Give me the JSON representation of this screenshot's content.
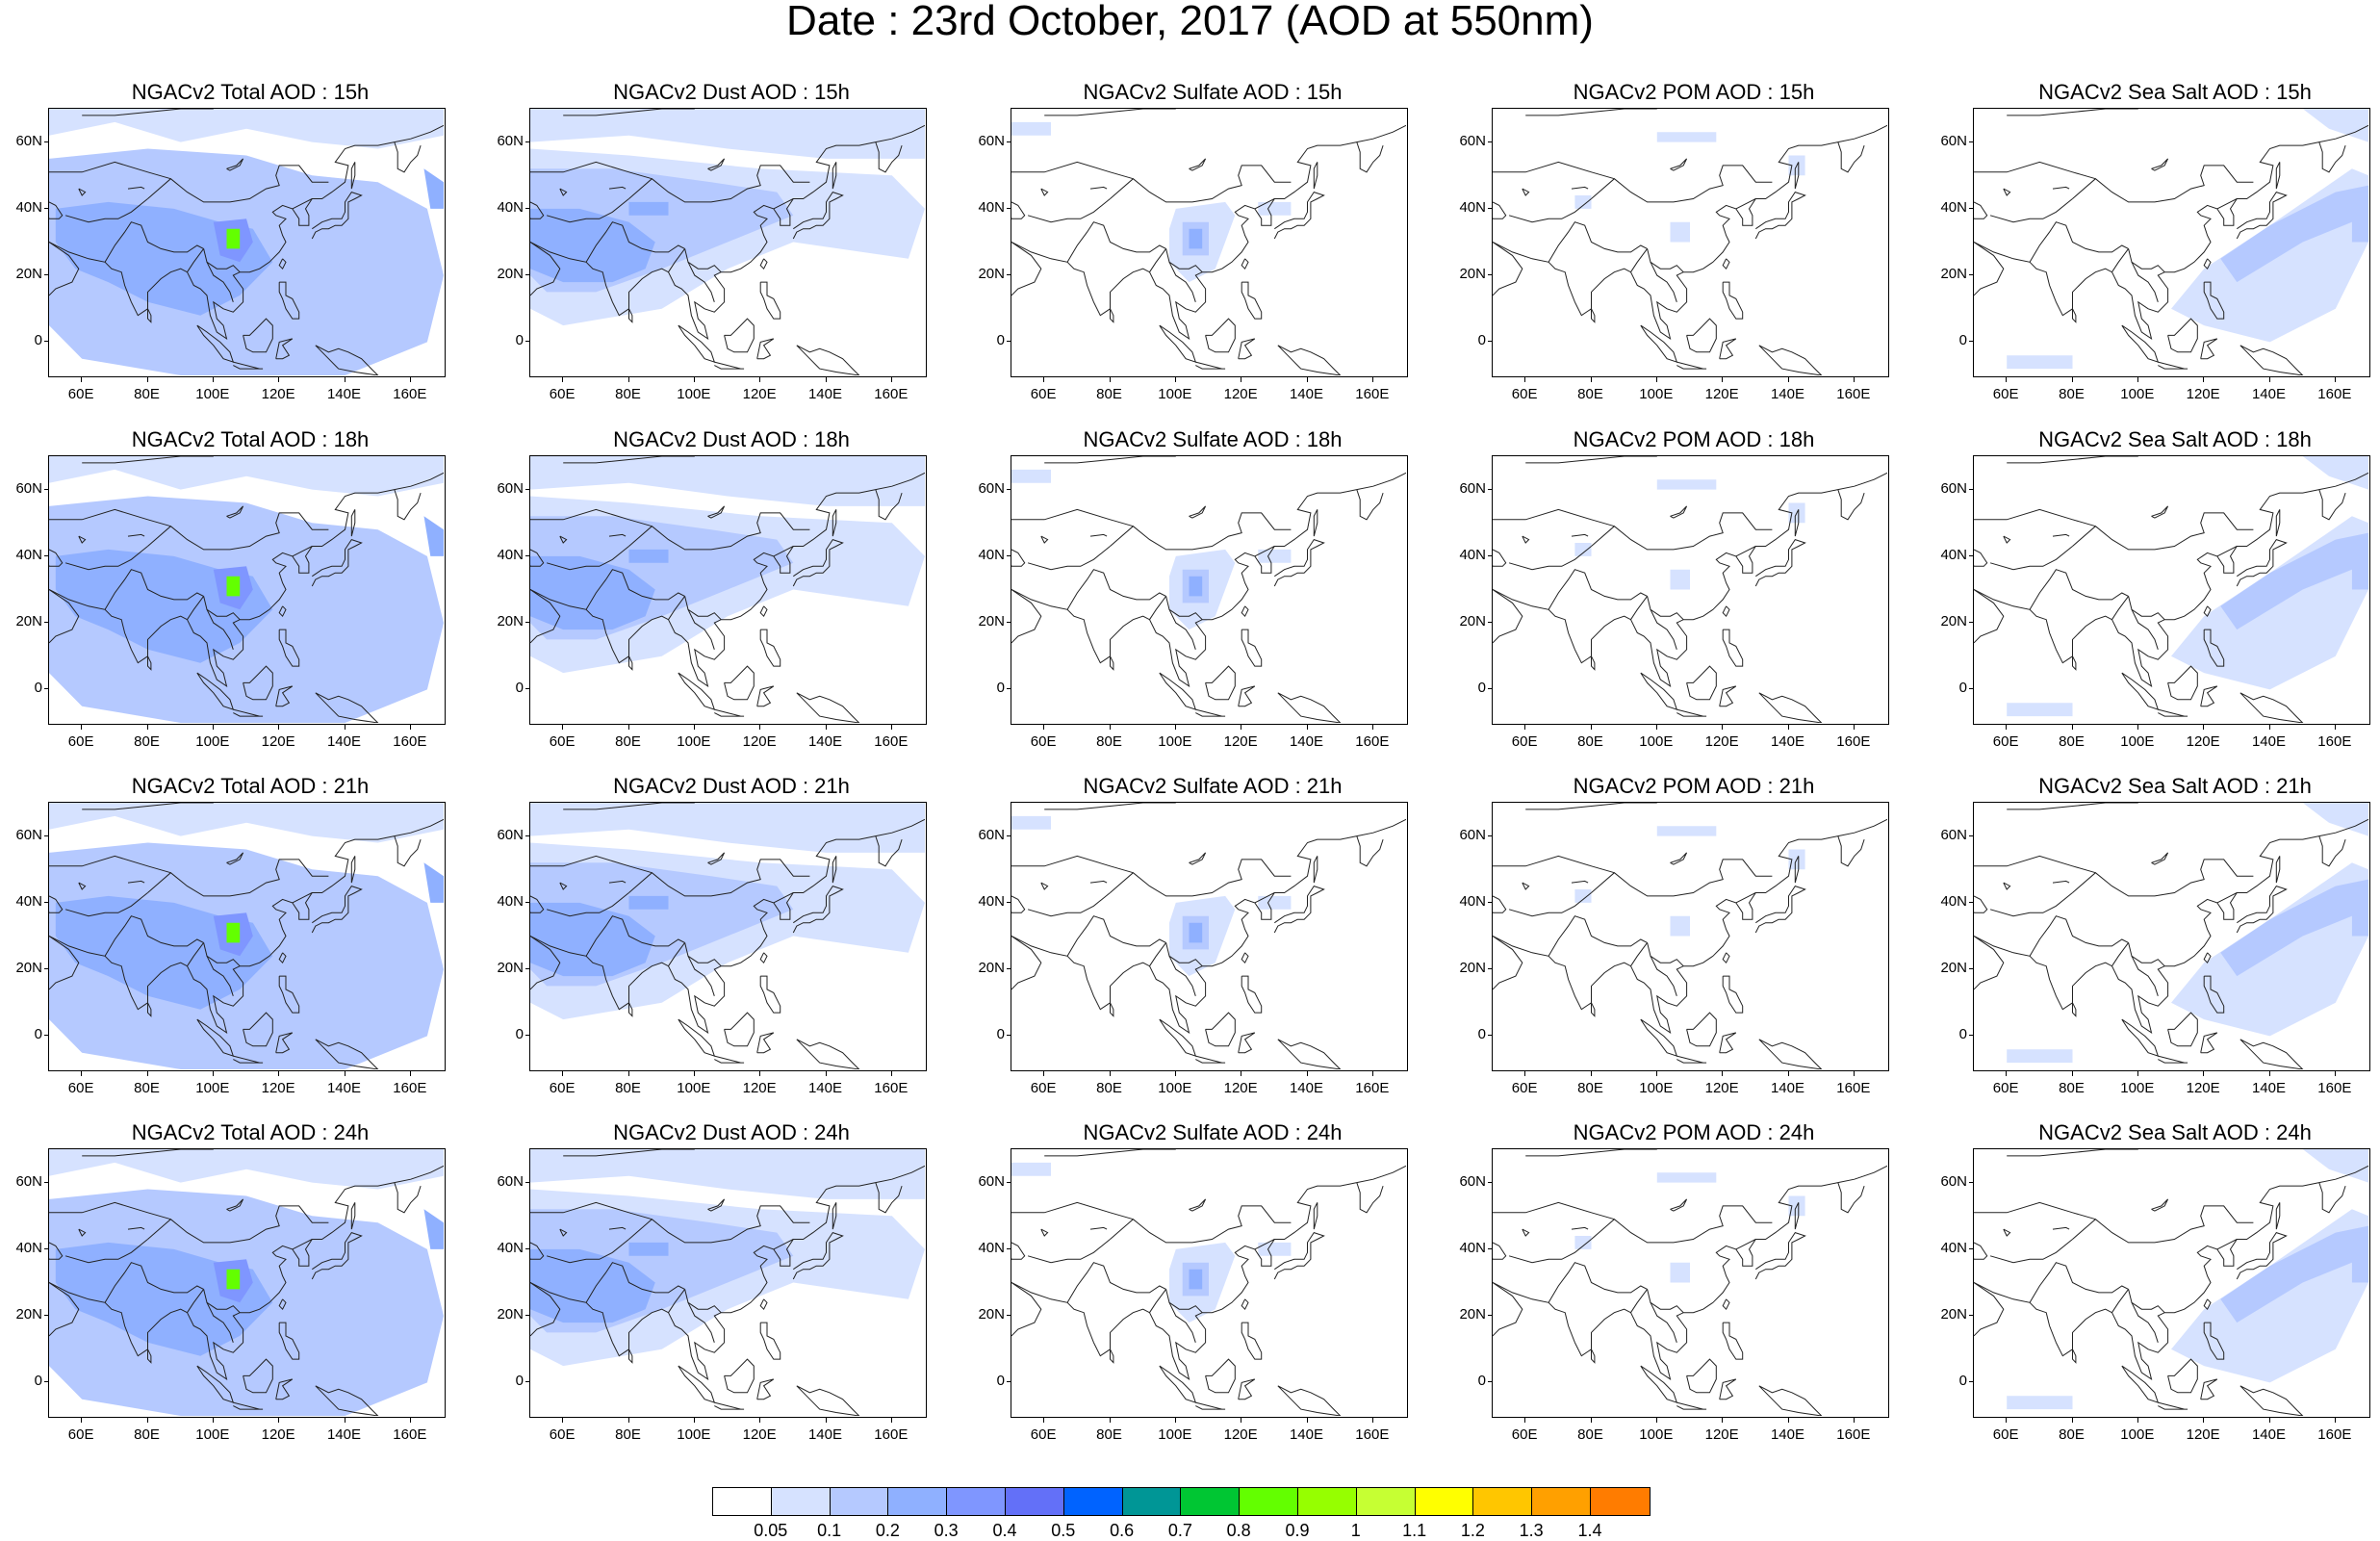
{
  "title": "Date : 23rd October, 2017 (AOD at 550nm)",
  "lat_labels": [
    "60N",
    "40N",
    "20N",
    "0"
  ],
  "lon_labels": [
    "60E",
    "80E",
    "100E",
    "120E",
    "140E",
    "160E"
  ],
  "rows": [
    "15h",
    "18h",
    "21h",
    "24h"
  ],
  "panels": [
    {
      "title": "NGACv2 Total AOD : 15h",
      "species": "total"
    },
    {
      "title": "NGACv2 Dust AOD : 15h",
      "species": "dust"
    },
    {
      "title": "NGACv2 Sulfate AOD : 15h",
      "species": "sulfate"
    },
    {
      "title": "NGACv2 POM AOD : 15h",
      "species": "pom"
    },
    {
      "title": "NGACv2 Sea Salt AOD : 15h",
      "species": "seasalt"
    },
    {
      "title": "NGACv2 Total AOD : 18h",
      "species": "total"
    },
    {
      "title": "NGACv2 Dust AOD : 18h",
      "species": "dust"
    },
    {
      "title": "NGACv2 Sulfate AOD : 18h",
      "species": "sulfate"
    },
    {
      "title": "NGACv2 POM AOD : 18h",
      "species": "pom"
    },
    {
      "title": "NGACv2 Sea Salt AOD : 18h",
      "species": "seasalt"
    },
    {
      "title": "NGACv2 Total AOD : 21h",
      "species": "total"
    },
    {
      "title": "NGACv2 Dust AOD : 21h",
      "species": "dust"
    },
    {
      "title": "NGACv2 Sulfate AOD : 21h",
      "species": "sulfate"
    },
    {
      "title": "NGACv2 POM AOD : 21h",
      "species": "pom"
    },
    {
      "title": "NGACv2 Sea Salt AOD : 21h",
      "species": "seasalt"
    },
    {
      "title": "NGACv2 Total AOD : 24h",
      "species": "total"
    },
    {
      "title": "NGACv2 Dust AOD : 24h",
      "species": "dust"
    },
    {
      "title": "NGACv2 Sulfate AOD : 24h",
      "species": "sulfate"
    },
    {
      "title": "NGACv2 POM AOD : 24h",
      "species": "pom"
    },
    {
      "title": "NGACv2 Sea Salt  AOD : 24h",
      "species": "seasalt"
    }
  ],
  "colorbar": {
    "labels": [
      "0.05",
      "0.1",
      "0.2",
      "0.3",
      "0.4",
      "0.5",
      "0.6",
      "0.7",
      "0.8",
      "0.9",
      "1",
      "1.1",
      "1.2",
      "1.3",
      "1.4"
    ],
    "colors": [
      "#ffffff",
      "#d6e2ff",
      "#b5c9ff",
      "#8fb0ff",
      "#7f96ff",
      "#6370f8",
      "#0063ff",
      "#009696",
      "#00c633",
      "#63ff00",
      "#96ff00",
      "#c6ff33",
      "#ffff00",
      "#ffc600",
      "#ffa000",
      "#ff7c00",
      "#ff1900"
    ]
  },
  "colors": {
    "very_light": "#d6e2ff",
    "light": "#b5c9ff",
    "medium": "#8fb0ff",
    "dark": "#7f96ff",
    "hot": "#63ff00"
  }
}
